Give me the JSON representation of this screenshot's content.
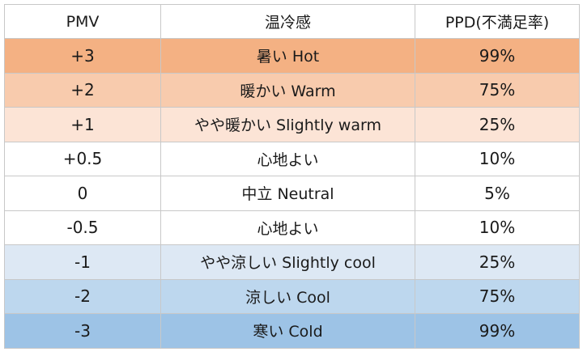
{
  "headers": {
    "pmv": "PMV",
    "sensation": "温冷感",
    "ppd": "PPD(不満足率)"
  },
  "rows": [
    {
      "pmv": "+3",
      "sensation": "暑い Hot",
      "ppd": "99%",
      "bg": "#f4b183"
    },
    {
      "pmv": "+2",
      "sensation": "暖かい Warm",
      "ppd": "75%",
      "bg": "#f8cbad"
    },
    {
      "pmv": "+1",
      "sensation": "やや暖かい Slightly warm",
      "ppd": "25%",
      "bg": "#fce4d6"
    },
    {
      "pmv": "+0.5",
      "sensation": "心地よい",
      "ppd": "10%",
      "bg": "#ffffff"
    },
    {
      "pmv": "0",
      "sensation": "中立 Neutral",
      "ppd": "5%",
      "bg": "#ffffff"
    },
    {
      "pmv": "-0.5",
      "sensation": "心地よい",
      "ppd": "10%",
      "bg": "#ffffff"
    },
    {
      "pmv": "-1",
      "sensation": "やや涼しい  Slightly cool",
      "ppd": "25%",
      "bg": "#dde8f4"
    },
    {
      "pmv": "-2",
      "sensation": "涼しい Cool",
      "ppd": "75%",
      "bg": "#bdd7ee"
    },
    {
      "pmv": "-3",
      "sensation": "寒い Cold",
      "ppd": "99%",
      "bg": "#9dc3e6"
    }
  ]
}
